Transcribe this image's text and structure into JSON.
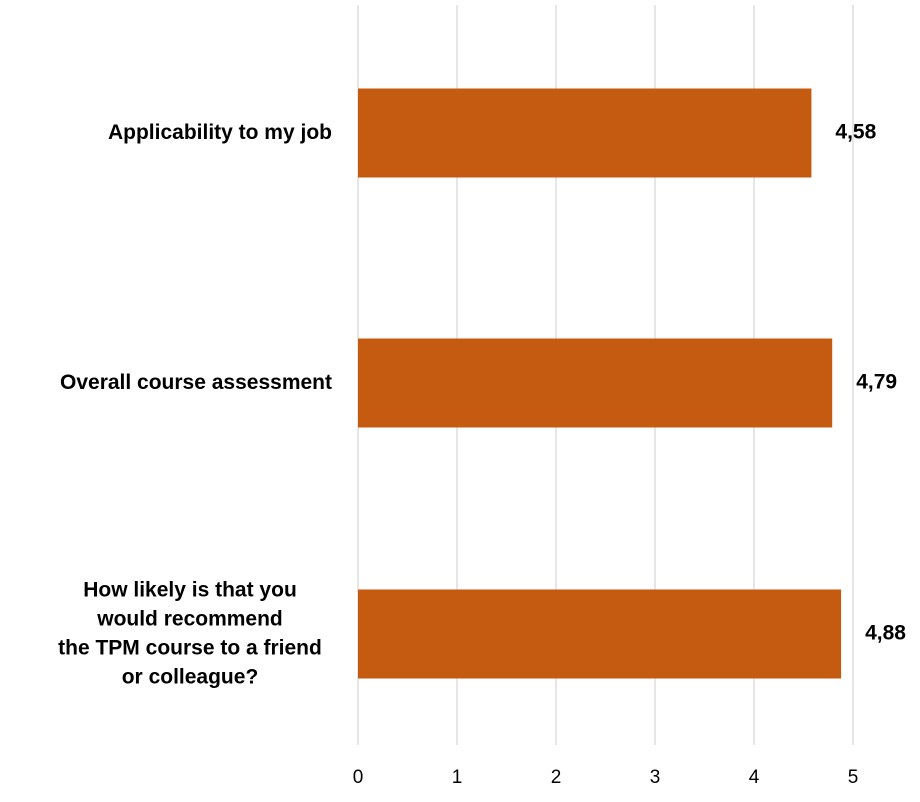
{
  "chart_data": {
    "type": "bar",
    "orientation": "horizontal",
    "title": "",
    "xlabel": "",
    "ylabel": "",
    "xlim": [
      0,
      5
    ],
    "x_ticks": [
      "0",
      "1",
      "2",
      "3",
      "4",
      "5"
    ],
    "grid": true,
    "legend": "none",
    "bar_color": "#C55A11",
    "categories": [
      [
        "Applicability to my job"
      ],
      [
        "Overall course assessment"
      ],
      [
        "How likely is that you",
        "would recommend",
        "the TPM course to a friend",
        "or colleague?"
      ]
    ],
    "values": [
      4.58,
      4.79,
      4.88
    ],
    "value_labels": [
      "4,58",
      "4,79",
      "4,88"
    ]
  }
}
